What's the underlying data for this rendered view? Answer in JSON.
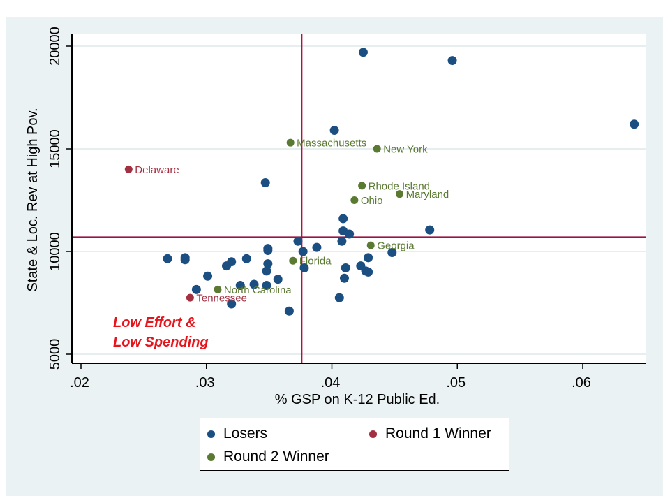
{
  "chart_data": {
    "type": "scatter",
    "title": "",
    "xlabel": "% GSP on K-12 Public Ed.",
    "ylabel": "State & Loc. Rev at High Pov.",
    "xlim": [
      0.0193,
      0.0651
    ],
    "ylim": [
      4800,
      20500
    ],
    "x_ticks": [
      0.02,
      0.03,
      0.04,
      0.05,
      0.06
    ],
    "x_tick_labels": [
      ".02",
      ".03",
      ".04",
      ".05",
      ".06"
    ],
    "y_ticks": [
      5000,
      10000,
      15000,
      20000
    ],
    "y_tick_labels": [
      "5000",
      "10000",
      "15000",
      "20000"
    ],
    "grid": "horizontal",
    "reference_lines": {
      "x": 0.0376,
      "y": 10700
    },
    "annotation": {
      "lines": [
        "Low Effort &",
        "Low Spending"
      ],
      "position": "bottom-left",
      "color": "#e8141c"
    },
    "legend": {
      "position": "bottom",
      "entries": [
        {
          "name": "Losers",
          "color": "#1b4f82"
        },
        {
          "name": "Round 1 Winner",
          "color": "#a33040"
        },
        {
          "name": "Round 2 Winner",
          "color": "#5a7a32"
        }
      ]
    },
    "series": [
      {
        "name": "Losers",
        "color": "#1b4f82",
        "points": [
          {
            "x": 0.0425,
            "y": 19700
          },
          {
            "x": 0.0496,
            "y": 19300
          },
          {
            "x": 0.0641,
            "y": 16200
          },
          {
            "x": 0.0402,
            "y": 15900
          },
          {
            "x": 0.0347,
            "y": 13350
          },
          {
            "x": 0.0409,
            "y": 11600
          },
          {
            "x": 0.0409,
            "y": 11000
          },
          {
            "x": 0.0414,
            "y": 10850
          },
          {
            "x": 0.0478,
            "y": 11050
          },
          {
            "x": 0.0373,
            "y": 10500
          },
          {
            "x": 0.0408,
            "y": 10500
          },
          {
            "x": 0.0388,
            "y": 10200
          },
          {
            "x": 0.0349,
            "y": 10150
          },
          {
            "x": 0.0349,
            "y": 10050
          },
          {
            "x": 0.0377,
            "y": 10000
          },
          {
            "x": 0.0448,
            "y": 9950
          },
          {
            "x": 0.0269,
            "y": 9650
          },
          {
            "x": 0.0283,
            "y": 9700
          },
          {
            "x": 0.0283,
            "y": 9600
          },
          {
            "x": 0.0332,
            "y": 9650
          },
          {
            "x": 0.032,
            "y": 9500
          },
          {
            "x": 0.0316,
            "y": 9300
          },
          {
            "x": 0.0349,
            "y": 9400
          },
          {
            "x": 0.0429,
            "y": 9700
          },
          {
            "x": 0.0423,
            "y": 9300
          },
          {
            "x": 0.0411,
            "y": 9200
          },
          {
            "x": 0.0378,
            "y": 9200
          },
          {
            "x": 0.0427,
            "y": 9050
          },
          {
            "x": 0.0429,
            "y": 9000
          },
          {
            "x": 0.0301,
            "y": 8800
          },
          {
            "x": 0.0348,
            "y": 9050
          },
          {
            "x": 0.0357,
            "y": 8650
          },
          {
            "x": 0.041,
            "y": 8700
          },
          {
            "x": 0.0348,
            "y": 8350
          },
          {
            "x": 0.0338,
            "y": 8400
          },
          {
            "x": 0.0327,
            "y": 8350
          },
          {
            "x": 0.0292,
            "y": 8150
          },
          {
            "x": 0.032,
            "y": 7450
          },
          {
            "x": 0.0366,
            "y": 7100
          },
          {
            "x": 0.0406,
            "y": 7750
          }
        ]
      },
      {
        "name": "Round 1 Winner",
        "color": "#a33040",
        "points": [
          {
            "x": 0.0238,
            "y": 14000,
            "label": "Delaware"
          },
          {
            "x": 0.0287,
            "y": 7750,
            "label": "Tennessee"
          }
        ]
      },
      {
        "name": "Round 2 Winner",
        "color": "#5a7a32",
        "points": [
          {
            "x": 0.0367,
            "y": 15300,
            "label": "Massachusetts"
          },
          {
            "x": 0.0436,
            "y": 15000,
            "label": "New York"
          },
          {
            "x": 0.0424,
            "y": 13200,
            "label": "Rhode Island"
          },
          {
            "x": 0.0454,
            "y": 12800,
            "label": "Maryland"
          },
          {
            "x": 0.0418,
            "y": 12500,
            "label": "Ohio"
          },
          {
            "x": 0.0431,
            "y": 10300,
            "label": "Georgia"
          },
          {
            "x": 0.0369,
            "y": 9550,
            "label": "Florida"
          },
          {
            "x": 0.0309,
            "y": 8150,
            "label": "North Carolina"
          }
        ]
      }
    ]
  }
}
